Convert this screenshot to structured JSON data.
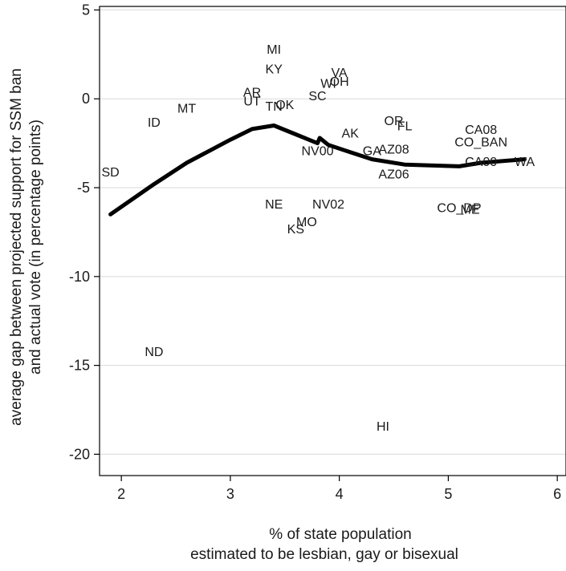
{
  "chart_data": {
    "type": "scatter",
    "title": "",
    "xlabel_lines": [
      "% of state population",
      "estimated to be lesbian, gay or bisexual"
    ],
    "ylabel_lines": [
      "average gap between projected support for SSM ban",
      "and actual vote (in percentage points)"
    ],
    "xlim": [
      1.8,
      6.08
    ],
    "ylim": [
      -21.2,
      5.2
    ],
    "x_ticks": [
      2,
      3,
      4,
      5,
      6
    ],
    "x_tick_labels": [
      "2",
      "3",
      "4",
      "5",
      "6"
    ],
    "y_ticks": [
      5,
      0,
      -5,
      -10,
      -15,
      -20
    ],
    "y_tick_labels": [
      "5",
      "0",
      "-5",
      "-10",
      "-15",
      "-20"
    ],
    "grid": true,
    "points": [
      {
        "label": "MI",
        "x": 3.4,
        "y": 2.8
      },
      {
        "label": "KY",
        "x": 3.4,
        "y": 1.7
      },
      {
        "label": "VA",
        "x": 4.0,
        "y": 1.5
      },
      {
        "label": "OH",
        "x": 4.0,
        "y": 1.0
      },
      {
        "label": "WI",
        "x": 3.9,
        "y": 0.9
      },
      {
        "label": "SC",
        "x": 3.8,
        "y": 0.2
      },
      {
        "label": "AR",
        "x": 3.2,
        "y": 0.4
      },
      {
        "label": "UT",
        "x": 3.2,
        "y": -0.1
      },
      {
        "label": "TN",
        "x": 3.4,
        "y": -0.4
      },
      {
        "label": "OK",
        "x": 3.5,
        "y": -0.3
      },
      {
        "label": "MT",
        "x": 2.6,
        "y": -0.5
      },
      {
        "label": "ID",
        "x": 2.3,
        "y": -1.3
      },
      {
        "label": "AK",
        "x": 4.1,
        "y": -1.9
      },
      {
        "label": "OR",
        "x": 4.5,
        "y": -1.2
      },
      {
        "label": "FL",
        "x": 4.6,
        "y": -1.5
      },
      {
        "label": "NV00",
        "x": 3.8,
        "y": -2.9
      },
      {
        "label": "GA",
        "x": 4.3,
        "y": -2.9
      },
      {
        "label": "AZ08",
        "x": 4.5,
        "y": -2.8
      },
      {
        "label": "CA08",
        "x": 5.3,
        "y": -1.7
      },
      {
        "label": "CO_BAN",
        "x": 5.3,
        "y": -2.4
      },
      {
        "label": "CA00",
        "x": 5.3,
        "y": -3.5
      },
      {
        "label": "WA",
        "x": 5.7,
        "y": -3.5
      },
      {
        "label": "AZ06",
        "x": 4.5,
        "y": -4.2
      },
      {
        "label": "SD",
        "x": 1.9,
        "y": -4.1
      },
      {
        "label": "NE",
        "x": 3.4,
        "y": -5.9
      },
      {
        "label": "NV02",
        "x": 3.9,
        "y": -5.9
      },
      {
        "label": "MO",
        "x": 3.7,
        "y": -6.9
      },
      {
        "label": "KS",
        "x": 3.6,
        "y": -7.3
      },
      {
        "label": "CO_DP",
        "x": 5.1,
        "y": -6.1
      },
      {
        "label": "ME",
        "x": 5.2,
        "y": -6.2
      },
      {
        "label": "ND",
        "x": 2.3,
        "y": -14.2
      },
      {
        "label": "HI",
        "x": 4.4,
        "y": -18.4
      }
    ],
    "smooth_line": {
      "x": [
        1.9,
        2.3,
        2.6,
        3.0,
        3.2,
        3.4,
        3.6,
        3.8,
        3.82,
        3.9,
        4.1,
        4.3,
        4.6,
        5.1,
        5.3,
        5.7
      ],
      "y": [
        -6.5,
        -4.8,
        -3.6,
        -2.3,
        -1.7,
        -1.5,
        -2.0,
        -2.5,
        -2.2,
        -2.6,
        -3.0,
        -3.4,
        -3.7,
        -3.8,
        -3.6,
        -3.4
      ]
    }
  }
}
